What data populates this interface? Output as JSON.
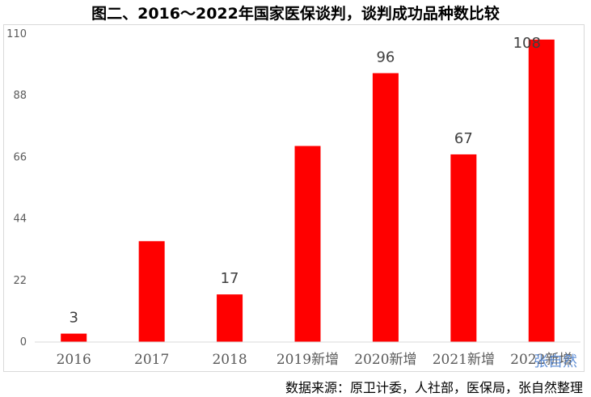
{
  "chart_data": {
    "type": "bar",
    "title": "图二、2016～2022年国家医保谈判，谈判成功品种数比较",
    "xlabel": "",
    "ylabel": "",
    "categories": [
      "2016",
      "2017",
      "2018",
      "2019新增",
      "2020新增",
      "2021新增",
      "2022新增"
    ],
    "values": [
      3,
      36,
      17,
      70,
      96,
      67,
      108
    ],
    "data_labels": [
      "3",
      "",
      "17",
      "",
      "96",
      "67",
      "108"
    ],
    "ylim": [
      0,
      110
    ],
    "yticks": [
      "0",
      "22",
      "44",
      "66",
      "88",
      "110"
    ],
    "grid": false,
    "bar_color": "#ff0000"
  },
  "source_note": "数据来源：原卫计委，人社部，医保局，张自然整理",
  "watermark": "张自然"
}
